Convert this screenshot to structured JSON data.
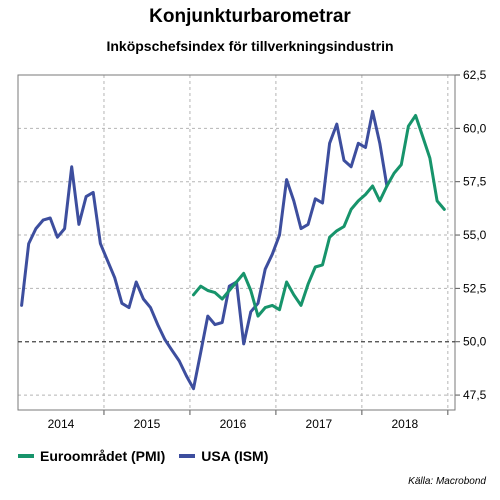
{
  "chart_data": {
    "type": "line",
    "title": "Konjunkturbarometrar",
    "subtitle": "Inköpschefsindex för tillverkningsindustrin",
    "xlabel": "",
    "ylabel": "",
    "x_tick_labels": [
      "2014",
      "2015",
      "2016",
      "2017",
      "2018"
    ],
    "y_tick_labels": [
      "47,5",
      "50,0",
      "52,5",
      "55,0",
      "57,5",
      "60,0",
      "62,5"
    ],
    "y_ticks": [
      47.5,
      50,
      52.5,
      55,
      57.5,
      60,
      62.5
    ],
    "ylim": [
      46.8,
      62.5
    ],
    "reference_line": 50,
    "grid": true,
    "legend_position": "bottom-left",
    "source": "Källa: Macrobond",
    "series": [
      {
        "name": "Euroområdet (PMI)",
        "color": "#17946b",
        "points": [
          [
            "2015-01",
            52.2
          ],
          [
            "2015-02",
            52.6
          ],
          [
            "2015-03",
            52.4
          ],
          [
            "2015-04",
            52.3
          ],
          [
            "2015-05",
            52.0
          ],
          [
            "2015-06",
            52.4
          ],
          [
            "2015-07",
            52.8
          ],
          [
            "2015-08",
            53.2
          ],
          [
            "2015-09",
            52.4
          ],
          [
            "2015-10",
            51.2
          ],
          [
            "2015-11",
            51.6
          ],
          [
            "2015-12",
            51.7
          ],
          [
            "2016-01",
            51.5
          ],
          [
            "2016-02",
            52.8
          ],
          [
            "2016-03",
            52.2
          ],
          [
            "2016-04",
            51.7
          ],
          [
            "2016-05",
            52.7
          ],
          [
            "2016-06",
            53.5
          ],
          [
            "2016-07",
            53.6
          ],
          [
            "2016-08",
            54.9
          ],
          [
            "2016-09",
            55.2
          ],
          [
            "2016-10",
            55.4
          ],
          [
            "2016-11",
            56.2
          ],
          [
            "2016-12",
            56.6
          ],
          [
            "2017-01",
            56.9
          ],
          [
            "2017-02",
            57.3
          ],
          [
            "2017-03",
            56.6
          ],
          [
            "2017-04",
            57.3
          ],
          [
            "2017-05",
            57.9
          ],
          [
            "2017-06",
            58.3
          ],
          [
            "2017-07",
            60.1
          ],
          [
            "2017-08",
            60.6
          ],
          [
            "2017-09",
            59.6
          ],
          [
            "2017-10",
            58.6
          ],
          [
            "2017-11",
            56.6
          ],
          [
            "2017-12",
            56.2
          ]
        ]
      },
      {
        "name": "USA (ISM)",
        "color": "#3d4e9e",
        "points": [
          [
            "2013-01",
            51.7
          ],
          [
            "2013-02",
            54.6
          ],
          [
            "2013-03",
            55.3
          ],
          [
            "2013-04",
            55.7
          ],
          [
            "2013-05",
            55.8
          ],
          [
            "2013-06",
            54.9
          ],
          [
            "2013-07",
            55.3
          ],
          [
            "2013-08",
            58.2
          ],
          [
            "2013-09",
            55.5
          ],
          [
            "2013-10",
            56.8
          ],
          [
            "2013-11",
            57.0
          ],
          [
            "2013-12",
            54.6
          ],
          [
            "2014-01",
            53.8
          ],
          [
            "2014-02",
            53.0
          ],
          [
            "2014-03",
            51.8
          ],
          [
            "2014-04",
            51.6
          ],
          [
            "2014-05",
            52.8
          ],
          [
            "2014-06",
            52.0
          ],
          [
            "2014-07",
            51.6
          ],
          [
            "2014-08",
            50.8
          ],
          [
            "2014-09",
            50.1
          ],
          [
            "2014-10",
            49.6
          ],
          [
            "2014-11",
            49.1
          ],
          [
            "2014-12",
            48.4
          ],
          [
            "2015-01",
            47.8
          ],
          [
            "2015-02",
            49.5
          ],
          [
            "2015-03",
            51.2
          ],
          [
            "2015-04",
            50.8
          ],
          [
            "2015-05",
            50.9
          ],
          [
            "2015-06",
            52.6
          ],
          [
            "2015-07",
            52.8
          ],
          [
            "2015-08",
            49.9
          ],
          [
            "2015-09",
            51.4
          ],
          [
            "2015-10",
            51.8
          ],
          [
            "2015-11",
            53.4
          ],
          [
            "2015-12",
            54.1
          ],
          [
            "2016-01",
            55.0
          ],
          [
            "2016-02",
            57.6
          ],
          [
            "2016-03",
            56.6
          ],
          [
            "2016-04",
            55.3
          ],
          [
            "2016-05",
            55.5
          ],
          [
            "2016-06",
            56.7
          ],
          [
            "2016-07",
            56.5
          ],
          [
            "2016-08",
            59.3
          ],
          [
            "2016-09",
            60.2
          ],
          [
            "2016-10",
            58.5
          ],
          [
            "2016-11",
            58.2
          ],
          [
            "2016-12",
            59.3
          ],
          [
            "2017-01",
            59.1
          ],
          [
            "2017-02",
            60.8
          ],
          [
            "2017-03",
            59.3
          ],
          [
            "2017-04",
            57.3
          ]
        ]
      }
    ]
  }
}
